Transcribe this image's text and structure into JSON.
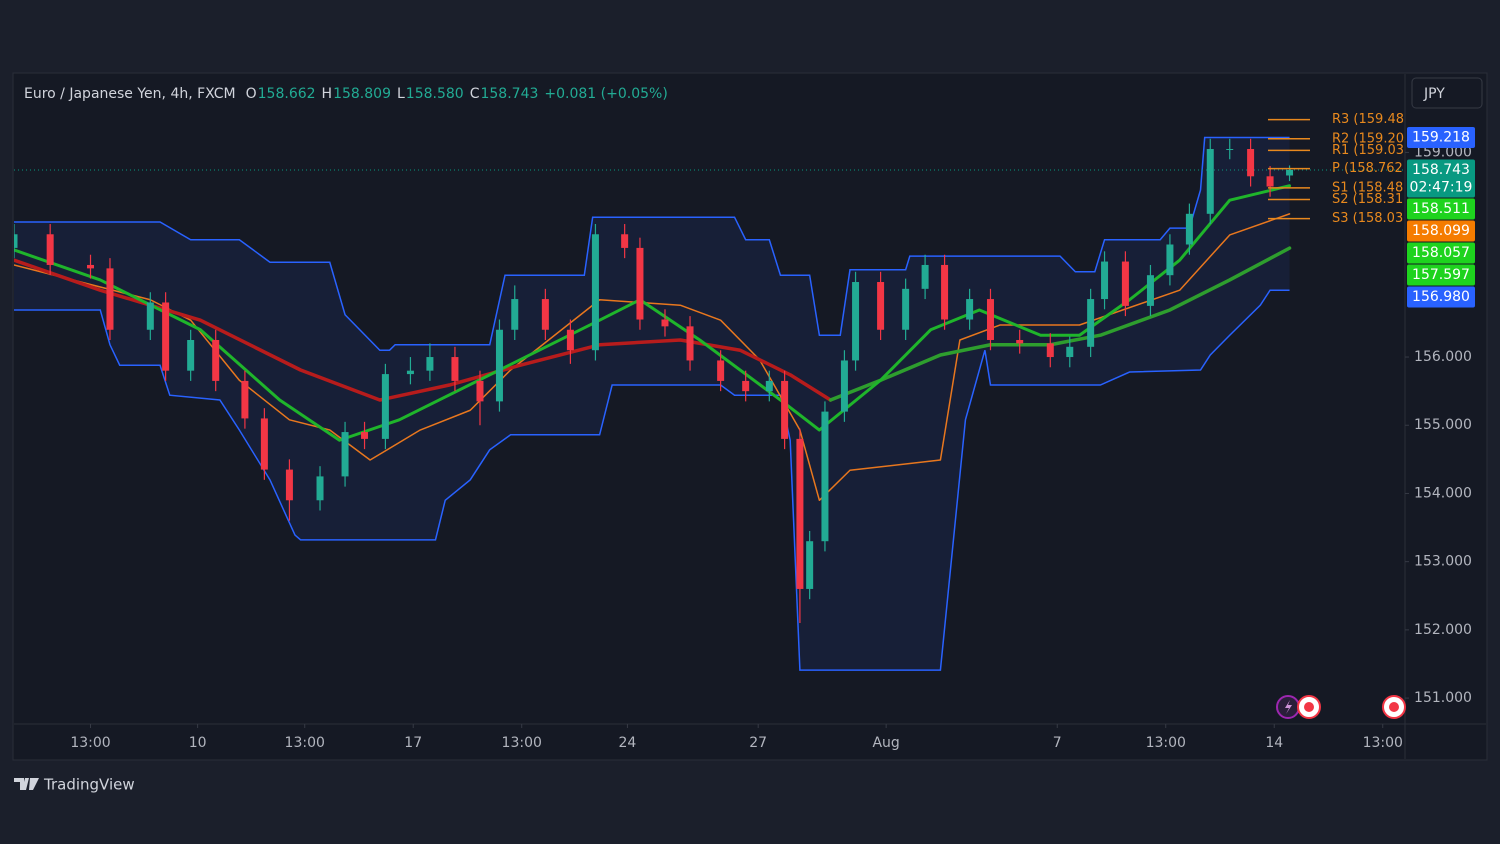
{
  "chart_data": {
    "type": "candlestick",
    "instrument": "Euro / Japanese Yen, 4h, FXCM",
    "ohlc_header": [
      {
        "key": "O",
        "value": "158.662"
      },
      {
        "key": "H",
        "value": "158.809"
      },
      {
        "key": "L",
        "value": "158.580"
      },
      {
        "key": "C",
        "value": "158.743"
      }
    ],
    "change": "+0.081 (+0.05%)",
    "currency": "JPY",
    "up_color": "#22ab94",
    "down_color": "#f23645",
    "x": [
      0,
      2.6,
      5.5,
      6.9,
      9.8,
      10.9,
      12.7,
      14.5,
      16.6,
      18.0,
      19.8,
      22.0,
      23.8,
      25.2,
      26.7,
      28.5,
      29.9,
      31.7,
      33.5,
      34.9,
      36.0,
      38.2,
      40.0,
      41.8,
      43.9,
      45.0,
      46.8,
      48.6,
      50.8,
      52.6,
      54.3,
      55.4,
      56.5,
      57.2,
      58.3,
      59.7,
      60.5,
      62.3,
      64.1,
      65.5,
      66.9,
      68.7,
      70.2,
      72.3,
      74.5,
      75.9,
      77.4,
      78.4,
      79.9,
      81.7,
      83.1,
      84.5,
      86.0,
      87.4,
      88.9,
      90.3,
      91.7
    ],
    "open": [
      157.6,
      157.8,
      157.35,
      157.3,
      156.4,
      156.8,
      155.8,
      156.25,
      155.65,
      155.1,
      154.35,
      153.9,
      154.25,
      154.9,
      154.8,
      155.75,
      155.8,
      156.0,
      155.65,
      155.35,
      156.4,
      156.85,
      156.4,
      156.1,
      157.8,
      157.6,
      156.55,
      156.45,
      155.95,
      155.65,
      155.5,
      155.65,
      154.8,
      152.6,
      153.3,
      155.2,
      155.95,
      157.1,
      156.4,
      157.0,
      157.35,
      156.55,
      156.85,
      156.25,
      156.2,
      156.0,
      156.15,
      156.85,
      157.4,
      156.75,
      157.2,
      157.65,
      158.1,
      159.05,
      159.05,
      158.65,
      158.662
    ],
    "high": [
      157.95,
      157.95,
      157.5,
      157.45,
      156.95,
      156.95,
      156.4,
      156.4,
      155.8,
      155.25,
      154.5,
      154.4,
      155.05,
      155.05,
      155.9,
      156.0,
      156.2,
      156.15,
      155.8,
      156.55,
      157.05,
      157.0,
      156.55,
      157.95,
      157.95,
      157.75,
      156.7,
      156.6,
      156.1,
      155.8,
      155.8,
      155.8,
      154.95,
      153.45,
      155.35,
      156.1,
      157.25,
      157.25,
      157.15,
      157.5,
      157.5,
      157.0,
      157.0,
      156.4,
      156.35,
      156.3,
      157.0,
      157.55,
      157.55,
      157.35,
      157.8,
      158.25,
      159.2,
      159.2,
      159.2,
      158.8,
      158.809
    ],
    "low": [
      157.45,
      157.2,
      157.15,
      156.25,
      156.25,
      155.65,
      155.65,
      155.5,
      154.95,
      154.2,
      153.6,
      153.75,
      154.1,
      154.65,
      154.65,
      155.6,
      155.65,
      155.5,
      155.0,
      155.2,
      156.25,
      156.25,
      155.9,
      155.95,
      157.45,
      156.4,
      156.3,
      155.8,
      155.5,
      155.35,
      155.35,
      154.65,
      152.1,
      152.45,
      153.15,
      155.05,
      155.8,
      156.25,
      156.25,
      156.85,
      156.4,
      156.4,
      156.1,
      156.05,
      155.85,
      155.85,
      156.0,
      156.7,
      156.6,
      156.6,
      157.05,
      157.5,
      157.95,
      158.9,
      158.5,
      158.35,
      158.58
    ],
    "close": [
      157.8,
      157.35,
      157.3,
      156.4,
      156.8,
      155.8,
      156.25,
      155.65,
      155.1,
      154.35,
      153.9,
      154.25,
      154.9,
      154.8,
      155.75,
      155.8,
      156.0,
      155.65,
      155.35,
      156.4,
      156.85,
      156.4,
      156.1,
      157.8,
      157.6,
      156.55,
      156.45,
      155.95,
      155.65,
      155.5,
      155.65,
      154.8,
      152.6,
      153.3,
      155.2,
      155.95,
      157.1,
      156.4,
      157.0,
      157.35,
      156.55,
      156.85,
      156.25,
      156.2,
      156.0,
      156.15,
      156.85,
      157.4,
      156.75,
      157.2,
      157.65,
      158.1,
      159.05,
      159.05,
      158.65,
      158.5,
      158.743
    ],
    "band_color": "#2962ff",
    "band": [
      {
        "x": [
          0,
          10.5,
          12.7,
          16.2,
          18.4,
          22.7,
          23.8,
          26.3,
          27.0,
          27.4,
          34.2,
          35.3,
          41.0,
          41.6,
          51.8,
          52.6,
          54.3,
          55.1,
          57.2,
          57.9,
          59.4,
          60.1,
          64.1,
          64.4,
          75.2,
          76.3,
          77.7,
          78.4,
          82.4,
          83.1,
          84.5,
          85.3,
          85.6,
          91.7
        ],
        "values": [
          157.98,
          157.98,
          157.72,
          157.72,
          157.39,
          157.39,
          156.62,
          156.1,
          156.1,
          156.18,
          156.18,
          157.2,
          157.2,
          158.05,
          158.05,
          157.72,
          157.72,
          157.2,
          157.2,
          156.32,
          156.32,
          157.28,
          157.28,
          157.48,
          157.48,
          157.25,
          157.25,
          157.72,
          157.72,
          157.89,
          157.89,
          158.45,
          159.218,
          159.218
        ]
      },
      {
        "x": [
          0,
          6.2,
          6.9,
          7.6,
          10.5,
          11.2,
          14.8,
          16.2,
          18.4,
          20.2,
          20.6,
          30.3,
          31.0,
          32.8,
          34.2,
          35.7,
          42.1,
          43.0,
          50.8,
          51.8,
          55.1,
          55.8,
          56.5,
          66.6,
          68.4,
          69.8,
          70.2,
          78.1,
          80.2,
          85.3,
          86.0,
          87.4,
          89.6,
          90.3,
          91.7
        ],
        "values": [
          156.69,
          156.69,
          156.18,
          155.88,
          155.88,
          155.44,
          155.37,
          154.93,
          154.2,
          153.39,
          153.32,
          153.32,
          153.9,
          154.2,
          154.64,
          154.86,
          154.86,
          155.59,
          155.59,
          155.44,
          155.44,
          154.78,
          151.41,
          151.41,
          155.08,
          156.1,
          155.59,
          155.59,
          155.78,
          155.81,
          156.03,
          156.32,
          156.76,
          156.98,
          156.98
        ]
      }
    ],
    "lines": [
      {
        "color": "#e8771e",
        "width": 1.5,
        "x": [
          0,
          9.8,
          12.7,
          16.2,
          19.8,
          22.7,
          25.6,
          29.2,
          32.8,
          35.7,
          42.1,
          47.9,
          50.8,
          53.6,
          56.5,
          57.9,
          60.1,
          66.6,
          68.0,
          70.9,
          76.6,
          83.8,
          87.4,
          91.7
        ],
        "values": [
          157.35,
          156.84,
          156.54,
          155.66,
          155.08,
          154.93,
          154.49,
          154.93,
          155.22,
          155.81,
          156.84,
          156.76,
          156.54,
          155.96,
          154.93,
          153.9,
          154.34,
          154.49,
          156.25,
          156.47,
          156.47,
          156.98,
          157.79,
          158.099
        ]
      },
      {
        "color": "#b71c1c",
        "width": 3.5,
        "x": [
          0,
          6.2,
          13.4,
          20.6,
          26.3,
          31.3,
          36.4,
          42.1,
          47.9,
          52.2,
          55.8,
          58.7
        ],
        "values": [
          157.42,
          156.98,
          156.54,
          155.81,
          155.37,
          155.59,
          155.88,
          156.18,
          156.25,
          156.1,
          155.74,
          155.37
        ]
      },
      {
        "color": "#2e9e2e",
        "width": 3.5,
        "x": [
          58.7,
          62.3,
          66.6,
          70.2,
          74.5,
          78.1,
          83.1,
          87.4,
          91.7
        ],
        "values": [
          155.37,
          155.66,
          156.03,
          156.18,
          156.18,
          156.32,
          156.69,
          157.13,
          157.597
        ]
      },
      {
        "color": "#1fb52b",
        "width": 3,
        "x": [
          0,
          6.2,
          13.4,
          19.1,
          23.4,
          27.7,
          34.9,
          42.1,
          45.0,
          49.3,
          55.1,
          57.9,
          62.3,
          65.9,
          69.4,
          73.8,
          76.6,
          80.2,
          83.8,
          87.4,
          91.7
        ],
        "values": [
          157.57,
          157.13,
          156.4,
          155.37,
          154.78,
          155.08,
          155.81,
          156.54,
          156.84,
          156.25,
          155.37,
          154.93,
          155.66,
          156.4,
          156.69,
          156.32,
          156.32,
          156.84,
          157.42,
          158.3,
          158.511
        ]
      }
    ],
    "pivot_color": "#e8891e",
    "pivots": [
      {
        "label": "R3 (159.48",
        "value": 159.48
      },
      {
        "label": "R2 (159.20",
        "value": 159.2
      },
      {
        "label": "R1 (159.03",
        "value": 159.03
      },
      {
        "label": "P (158.762",
        "value": 158.762
      },
      {
        "label": "S1 (158.48",
        "value": 158.48
      },
      {
        "label": "S2 (158.31",
        "value": 158.31
      },
      {
        "label": "S3 (158.03",
        "value": 158.03
      }
    ],
    "price_tags": [
      {
        "value": 159.218,
        "label": "159.218",
        "color": "#2962ff"
      },
      {
        "value": 158.743,
        "label": "158.743",
        "color": "#089981",
        "countdown": "02:47:19"
      },
      {
        "value": 158.511,
        "label": "158.511",
        "color": "#1ed31e"
      },
      {
        "value": 158.099,
        "label": "158.099",
        "color": "#f57c00"
      },
      {
        "value": 158.057,
        "label": "158.057",
        "color": "#1ed31e"
      },
      {
        "value": 157.597,
        "label": "157.597",
        "color": "#1ed31e"
      },
      {
        "value": 156.98,
        "label": "156.980",
        "color": "#2962ff"
      }
    ],
    "xlim": [
      0,
      100
    ],
    "xticks": [
      {
        "value": 5.5,
        "label": "13:00"
      },
      {
        "value": 13.2,
        "label": "10"
      },
      {
        "value": 20.9,
        "label": "13:00"
      },
      {
        "value": 28.7,
        "label": "17"
      },
      {
        "value": 36.5,
        "label": "13:00"
      },
      {
        "value": 44.1,
        "label": "24"
      },
      {
        "value": 53.5,
        "label": "27"
      },
      {
        "value": 62.7,
        "label": "Aug"
      },
      {
        "value": 75.0,
        "label": "7"
      },
      {
        "value": 82.8,
        "label": "13:00"
      },
      {
        "value": 90.6,
        "label": "14"
      },
      {
        "value": 98.4,
        "label": "13:00"
      }
    ],
    "ylim": [
      150.62,
      160.135
    ],
    "yticks": [
      {
        "value": 151,
        "label": "151.000"
      },
      {
        "value": 152,
        "label": "152.000"
      },
      {
        "value": 153,
        "label": "153.000"
      },
      {
        "value": 154,
        "label": "154.000"
      },
      {
        "value": 155,
        "label": "155.000"
      },
      {
        "value": 156,
        "label": "156.000"
      },
      {
        "value": 159,
        "label": "159.000"
      }
    ]
  },
  "footer": {
    "brand": "TradingView"
  }
}
